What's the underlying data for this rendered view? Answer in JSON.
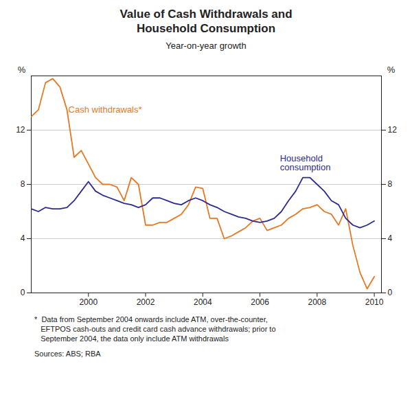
{
  "chart_data": {
    "type": "line",
    "title": "Value of Cash Withdrawals and\nHousehold Consumption",
    "subtitle": "Year-on-year growth",
    "footnote": "*  Data from September 2004 onwards include ATM, over-the-counter,\n   EFTPOS cash-outs and credit card cash advance withdrawals; prior to\n   September 2004, the data only include ATM withdrawals",
    "source": "Sources: ABS; RBA",
    "ylabel": "%",
    "y2label": "%",
    "xlim": [
      1998.0,
      2010.25
    ],
    "xticks": [
      2000,
      2002,
      2004,
      2006,
      2008,
      2010
    ],
    "ylim": [
      0,
      16
    ],
    "yticks": [
      0,
      4,
      8,
      12
    ],
    "y2lim": [
      0,
      16
    ],
    "y2ticks": [
      0,
      4,
      8,
      12
    ],
    "grid": true,
    "x": [
      1998.0,
      1998.25,
      1998.5,
      1998.75,
      1999.0,
      1999.25,
      1999.5,
      1999.75,
      2000.0,
      2000.25,
      2000.5,
      2000.75,
      2001.0,
      2001.25,
      2001.5,
      2001.75,
      2002.0,
      2002.25,
      2002.5,
      2002.75,
      2003.0,
      2003.25,
      2003.5,
      2003.75,
      2004.0,
      2004.25,
      2004.5,
      2004.75,
      2005.0,
      2005.25,
      2005.5,
      2005.75,
      2006.0,
      2006.25,
      2006.5,
      2006.75,
      2007.0,
      2007.25,
      2007.5,
      2007.75,
      2008.0,
      2008.25,
      2008.5,
      2008.75,
      2009.0,
      2009.25,
      2009.5,
      2009.75,
      2010.0
    ],
    "series": [
      {
        "color": "#E87722",
        "values": [
          13.0,
          13.5,
          15.5,
          15.8,
          15.2,
          13.5,
          10.0,
          10.5,
          9.5,
          8.5,
          8.0,
          8.0,
          7.8,
          6.8,
          8.5,
          8.0,
          5.0,
          5.0,
          5.2,
          5.2,
          5.5,
          5.8,
          6.5,
          7.8,
          7.7,
          5.5,
          5.5,
          4.0,
          4.2,
          4.5,
          4.8,
          5.3,
          5.5,
          4.6,
          4.8,
          5.0,
          5.5,
          5.8,
          6.2,
          6.3,
          6.5,
          6.0,
          5.8,
          5.0,
          6.2,
          3.5,
          1.5,
          0.3,
          1.2
        ]
      },
      {
        "color": "#2B2B8F",
        "values": [
          6.2,
          6.0,
          6.3,
          6.2,
          6.2,
          6.3,
          6.8,
          7.5,
          8.2,
          7.5,
          7.2,
          7.0,
          6.8,
          6.6,
          6.5,
          6.3,
          6.5,
          7.0,
          7.0,
          6.8,
          6.6,
          6.5,
          6.8,
          7.0,
          6.8,
          6.5,
          6.3,
          6.0,
          5.8,
          5.6,
          5.5,
          5.3,
          5.2,
          5.3,
          5.5,
          6.0,
          6.8,
          7.5,
          8.5,
          8.5,
          8.0,
          7.5,
          6.8,
          6.5,
          5.5,
          5.0,
          4.8,
          5.0,
          5.3
        ]
      }
    ],
    "annotations": [
      {
        "text": "Cash withdrawals*",
        "x": 1999.3,
        "y": 13.5,
        "color": "#E87722"
      },
      {
        "text": "Household\nconsumption",
        "x": 2006.7,
        "y": 9.6,
        "color": "#2B2B8F"
      }
    ]
  }
}
